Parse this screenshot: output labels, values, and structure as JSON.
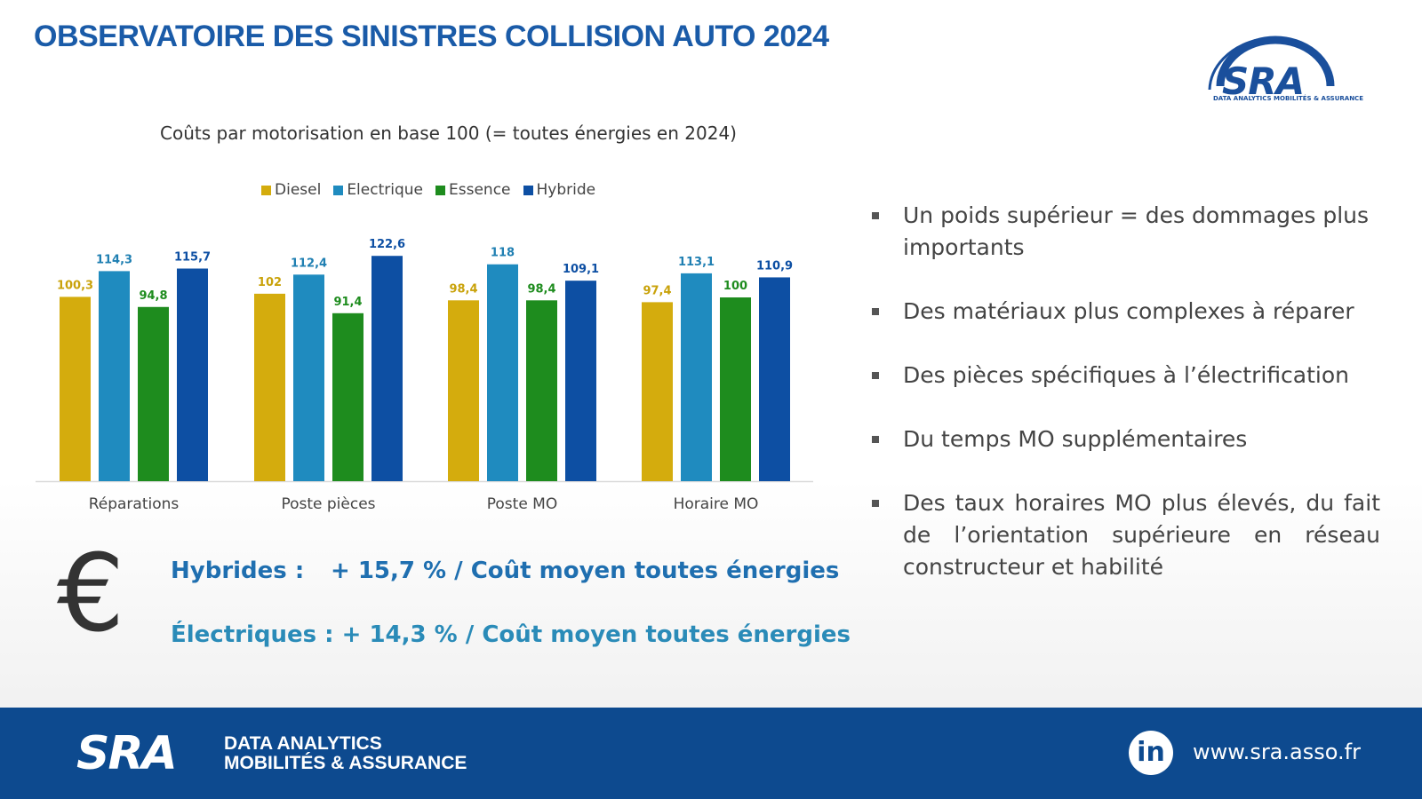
{
  "title": "OBSERVATOIRE DES SINISTRES COLLISION AUTO 2024",
  "logo": {
    "name": "SRA",
    "subtitle": "DATA ANALYTICS MOBILITÉS & ASSURANCE"
  },
  "chart_data": {
    "type": "bar",
    "title": "Coûts par motorisation en base 100 (= toutes énergies en 2024)",
    "categories": [
      "Réparations",
      "Poste pièces",
      "Poste MO",
      "Horaire MO"
    ],
    "series": [
      {
        "name": "Diesel",
        "color": "#d4ac0d",
        "label_color": "#c9a20a",
        "values": [
          100.3,
          102,
          98.4,
          97.4
        ],
        "labels": [
          "100,3",
          "102",
          "98,4",
          "97,4"
        ]
      },
      {
        "name": "Electrique",
        "color": "#1f8bbf",
        "label_color": "#1f7fb2",
        "values": [
          114.3,
          112.4,
          118,
          113.1
        ],
        "labels": [
          "114,3",
          "112,4",
          "118",
          "113,1"
        ]
      },
      {
        "name": "Essence",
        "color": "#1e8c1e",
        "label_color": "#1e8c1e",
        "values": [
          94.8,
          91.4,
          98.4,
          100
        ],
        "labels": [
          "94,8",
          "91,4",
          "98,4",
          "100"
        ]
      },
      {
        "name": "Hybride",
        "color": "#0d4fa3",
        "label_color": "#0d4fa3",
        "values": [
          115.7,
          122.6,
          109.1,
          110.9
        ],
        "labels": [
          "115,7",
          "122,6",
          "109,1",
          "110,9"
        ]
      }
    ],
    "legend": "top",
    "grid": false
  },
  "bullets": [
    "Un poids supérieur = des dommages plus importants",
    "Des matériaux plus complexes à réparer",
    "Des pièces spécifiques à l’électrification",
    "Du temps MO supplémentaires",
    "Des taux horaires MO plus élevés, du fait de l’orientation supérieure en réseau constructeur et habilité"
  ],
  "euro_symbol": "€",
  "stats": {
    "hybrid_label": "Hybrides :",
    "hybrid_value": "+ 15,7 % / Coût moyen toutes énergies",
    "electric_label": "Électriques :",
    "electric_value": "+ 14,3 % / Coût moyen toutes énergies"
  },
  "footer": {
    "logo": "SRA",
    "tagline_line1": "DATA ANALYTICS",
    "tagline_line2": "MOBILITÉS & ASSURANCE",
    "linkedin": "in",
    "url": "www.sra.asso.fr"
  }
}
